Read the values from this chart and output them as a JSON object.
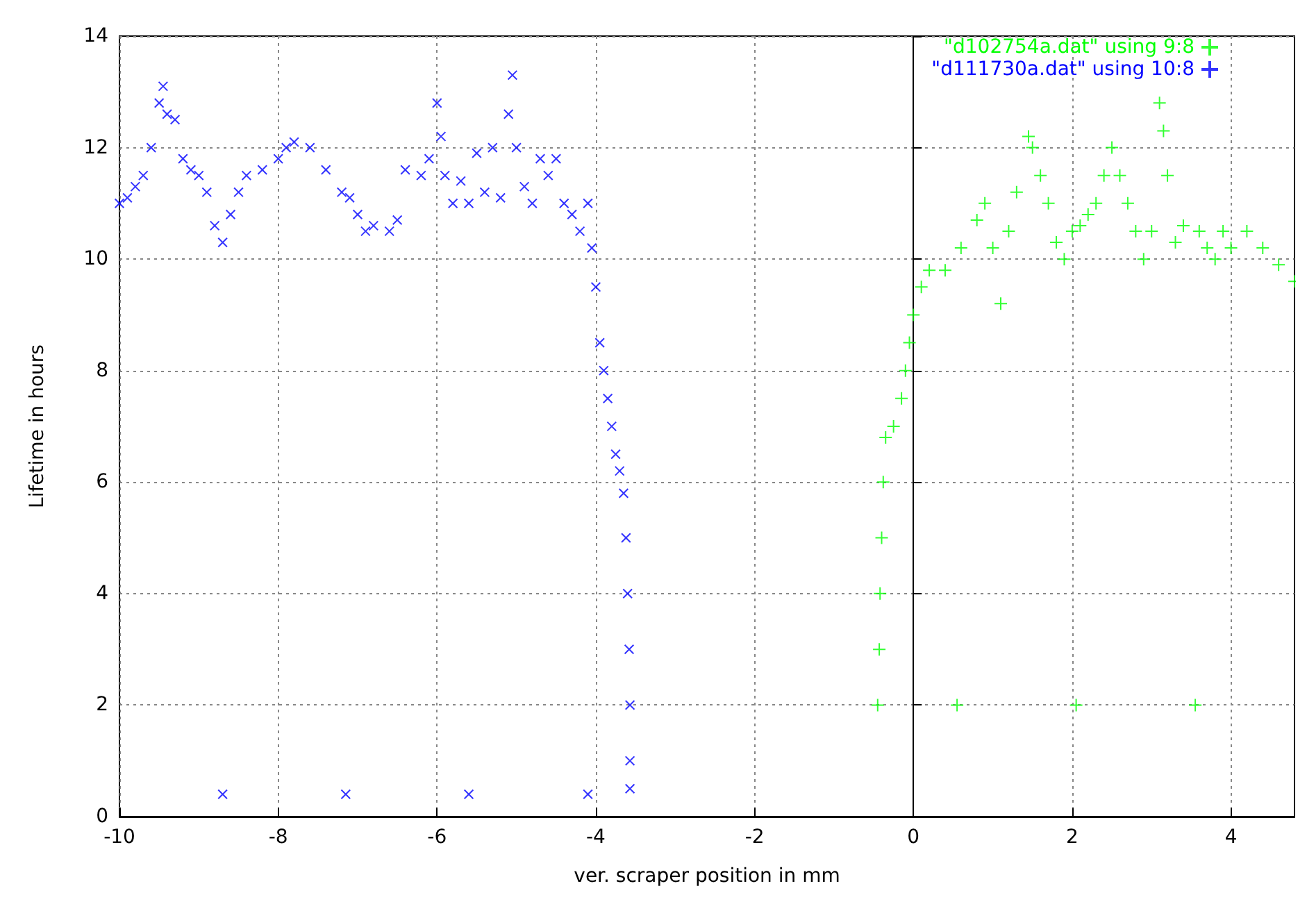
{
  "chart_data": {
    "type": "scatter",
    "xlabel": "ver. scraper position in mm",
    "ylabel": "Lifetime in hours",
    "xlim": [
      -10,
      4.8
    ],
    "ylim": [
      0,
      14
    ],
    "xticks": [
      -10,
      -8,
      -6,
      -4,
      -2,
      0,
      2,
      4
    ],
    "yticks": [
      0,
      2,
      4,
      6,
      8,
      10,
      12,
      14
    ],
    "grid": true,
    "legend": "top right",
    "marker": "cross",
    "series": [
      {
        "name": "\"d102754a.dat\" using 9:8",
        "color": "#00ff00",
        "x": [
          -0.45,
          -0.43,
          -0.42,
          -0.4,
          -0.38,
          -0.35,
          -0.25,
          -0.15,
          -0.1,
          -0.05,
          0,
          0.1,
          0.2,
          0.4,
          0.6,
          0.8,
          0.9,
          1.0,
          1.1,
          1.2,
          1.3,
          1.45,
          1.5,
          1.6,
          1.7,
          1.8,
          1.9,
          2.0,
          2.1,
          2.2,
          2.3,
          2.4,
          2.5,
          2.6,
          2.7,
          2.8,
          2.9,
          3.0,
          3.1,
          3.15,
          3.2,
          3.3,
          3.4,
          3.6,
          3.7,
          3.8,
          3.9,
          4.0,
          4.2,
          4.4,
          4.6,
          4.8,
          0.55,
          2.05,
          3.55
        ],
        "values": [
          2.0,
          3.0,
          4.0,
          5.0,
          6.0,
          6.8,
          7.0,
          7.5,
          8.0,
          8.5,
          9.0,
          9.5,
          9.8,
          9.8,
          10.2,
          10.7,
          11.0,
          10.2,
          9.2,
          10.5,
          11.2,
          12.2,
          12.0,
          11.5,
          11.0,
          10.3,
          10.0,
          10.5,
          10.6,
          10.8,
          11.0,
          11.5,
          12.0,
          11.5,
          11.0,
          10.5,
          10.0,
          10.5,
          12.8,
          12.3,
          11.5,
          10.3,
          10.6,
          10.5,
          10.2,
          10.0,
          10.5,
          10.2,
          10.5,
          10.2,
          9.9,
          9.6,
          2.0,
          2.0,
          2.0
        ]
      },
      {
        "name": "\"d111730a.dat\" using 10:8",
        "color": "#0000ff",
        "x": [
          -10,
          -9.9,
          -9.8,
          -9.7,
          -9.6,
          -9.5,
          -9.45,
          -9.4,
          -9.3,
          -9.2,
          -9.1,
          -9.0,
          -8.9,
          -8.8,
          -8.7,
          -8.6,
          -8.5,
          -8.4,
          -8.2,
          -8.0,
          -7.9,
          -7.8,
          -7.6,
          -7.4,
          -7.2,
          -7.1,
          -7.0,
          -6.9,
          -6.8,
          -6.6,
          -6.5,
          -6.4,
          -6.2,
          -6.1,
          -6.0,
          -5.95,
          -5.9,
          -5.8,
          -5.7,
          -5.6,
          -5.5,
          -5.4,
          -5.3,
          -5.2,
          -5.1,
          -5.05,
          -5.0,
          -4.9,
          -4.8,
          -4.7,
          -4.6,
          -4.5,
          -4.4,
          -4.3,
          -4.2,
          -4.1,
          -4.05,
          -4.0,
          -3.95,
          -3.9,
          -3.85,
          -3.8,
          -3.75,
          -3.7,
          -3.65,
          -3.62,
          -3.6,
          -3.58,
          -3.57,
          -3.57,
          -3.57,
          -8.7,
          -7.15,
          -5.6,
          -4.1
        ],
        "values": [
          11.0,
          11.1,
          11.3,
          11.5,
          12.0,
          12.8,
          13.1,
          12.6,
          12.5,
          11.8,
          11.6,
          11.5,
          11.2,
          10.6,
          10.3,
          10.8,
          11.2,
          11.5,
          11.6,
          11.8,
          12.0,
          12.1,
          12.0,
          11.6,
          11.2,
          11.1,
          10.8,
          10.5,
          10.6,
          10.5,
          10.7,
          11.6,
          11.5,
          11.8,
          12.8,
          12.2,
          11.5,
          11.0,
          11.4,
          11.0,
          11.9,
          11.2,
          12.0,
          11.1,
          12.6,
          13.3,
          12.0,
          11.3,
          11.0,
          11.8,
          11.5,
          11.8,
          11.0,
          10.8,
          10.5,
          11.0,
          10.2,
          9.5,
          8.5,
          8.0,
          7.5,
          7.0,
          6.5,
          6.2,
          5.8,
          5.0,
          4.0,
          3.0,
          2.0,
          1.0,
          0.5,
          0.4,
          0.4,
          0.4,
          0.4
        ]
      }
    ]
  }
}
